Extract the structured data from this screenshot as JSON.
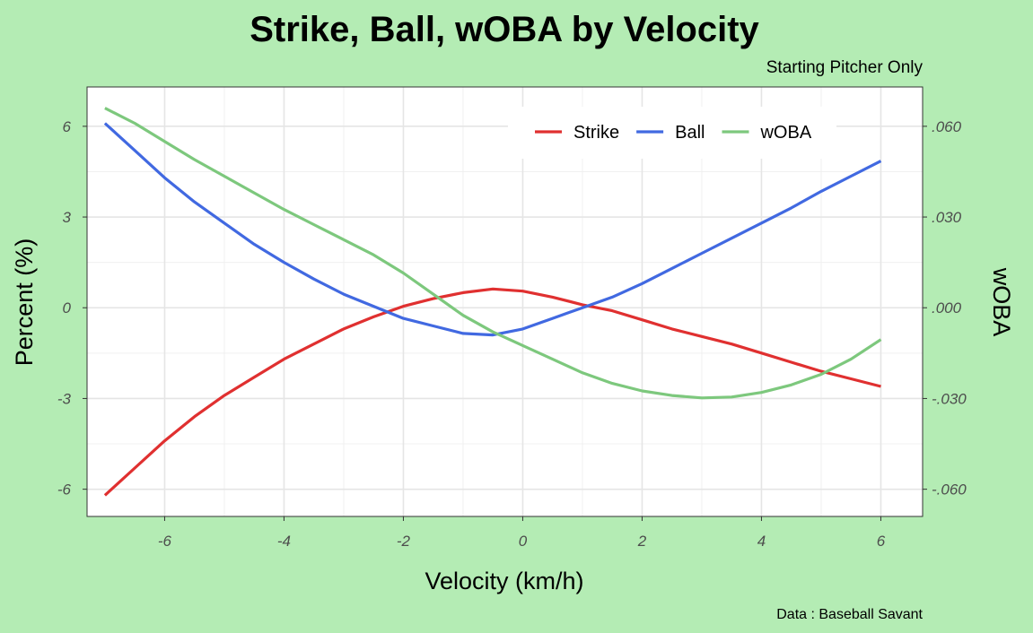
{
  "chart_data": {
    "type": "line",
    "title": "Strike, Ball, wOBA by Velocity",
    "subtitle": "Starting Pitcher Only",
    "caption": "Data : Baseball Savant",
    "xlabel": "Velocity (km/h)",
    "ylabel": "Percent (%)",
    "y2label": "wOBA",
    "xlim": [
      -7.3,
      6.7
    ],
    "ylim": [
      -6.9,
      7.3
    ],
    "y2lim": [
      -0.069,
      0.073
    ],
    "x_ticks": [
      -6,
      -4,
      -2,
      0,
      2,
      4,
      6
    ],
    "y_ticks": [
      -6,
      -3,
      0,
      3,
      6
    ],
    "y2_ticks": [
      -0.06,
      -0.03,
      0.0,
      0.03,
      0.06
    ],
    "y2_tick_labels": [
      "-.060",
      "-.030",
      ".000",
      ".030",
      ".060"
    ],
    "grid": true,
    "legend_position": "top-right",
    "series": [
      {
        "name": "Strike",
        "axis": "left",
        "color": "#e03030",
        "x": [
          -7,
          -6.5,
          -6,
          -5.5,
          -5,
          -4.5,
          -4,
          -3.5,
          -3,
          -2.5,
          -2,
          -1.5,
          -1,
          -0.5,
          0,
          0.5,
          1,
          1.5,
          2,
          2.5,
          3,
          3.5,
          4,
          4.5,
          5,
          5.5,
          6
        ],
        "values": [
          -6.2,
          -5.3,
          -4.4,
          -3.6,
          -2.9,
          -2.3,
          -1.7,
          -1.2,
          -0.7,
          -0.3,
          0.05,
          0.3,
          0.5,
          0.62,
          0.55,
          0.35,
          0.1,
          -0.1,
          -0.4,
          -0.7,
          -0.95,
          -1.2,
          -1.5,
          -1.8,
          -2.1,
          -2.35,
          -2.6
        ]
      },
      {
        "name": "Ball",
        "axis": "left",
        "color": "#4169e1",
        "x": [
          -7,
          -6.5,
          -6,
          -5.5,
          -5,
          -4.5,
          -4,
          -3.5,
          -3,
          -2.5,
          -2,
          -1.5,
          -1,
          -0.5,
          0,
          0.5,
          1,
          1.5,
          2,
          2.5,
          3,
          3.5,
          4,
          4.5,
          5,
          5.5,
          6
        ],
        "values": [
          6.1,
          5.2,
          4.3,
          3.5,
          2.8,
          2.1,
          1.5,
          0.95,
          0.45,
          0.05,
          -0.35,
          -0.6,
          -0.85,
          -0.9,
          -0.7,
          -0.35,
          0.0,
          0.35,
          0.8,
          1.3,
          1.8,
          2.3,
          2.8,
          3.3,
          3.85,
          4.35,
          4.85
        ]
      },
      {
        "name": "wOBA",
        "axis": "right",
        "color": "#7dc87d",
        "x": [
          -7,
          -6.5,
          -6,
          -5.5,
          -5,
          -4.5,
          -4,
          -3.5,
          -3,
          -2.5,
          -2,
          -1.5,
          -1,
          -0.5,
          0,
          0.5,
          1,
          1.5,
          2,
          2.5,
          3,
          3.5,
          4,
          4.5,
          5,
          5.5,
          6
        ],
        "values": [
          0.066,
          0.061,
          0.055,
          0.049,
          0.0435,
          0.038,
          0.0325,
          0.0275,
          0.0225,
          0.0175,
          0.0115,
          0.0045,
          -0.0025,
          -0.008,
          -0.0125,
          -0.017,
          -0.0215,
          -0.025,
          -0.0275,
          -0.029,
          -0.0298,
          -0.0295,
          -0.028,
          -0.0255,
          -0.022,
          -0.017,
          -0.0105
        ]
      }
    ]
  }
}
